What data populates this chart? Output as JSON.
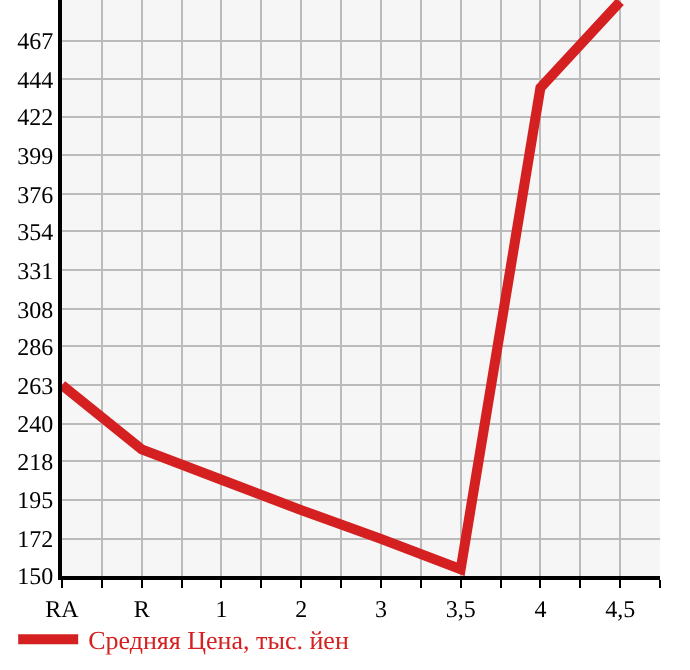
{
  "chart_data": {
    "type": "line",
    "categories": [
      "RA",
      "R",
      "1",
      "2",
      "3",
      "3,5",
      "4",
      "4,5"
    ],
    "series": [
      {
        "name": "Средняя Цена, тыс. йен",
        "color": "#d42020",
        "values": [
          263,
          225,
          207,
          189,
          172,
          154,
          439,
          490
        ]
      }
    ],
    "ylim": [
      150,
      491
    ],
    "yticks": [
      150,
      172,
      195,
      218,
      240,
      263,
      286,
      308,
      331,
      354,
      376,
      399,
      422,
      444,
      467
    ],
    "grid": true,
    "legend": "bottom",
    "marker": "none",
    "line_style": "solid"
  }
}
